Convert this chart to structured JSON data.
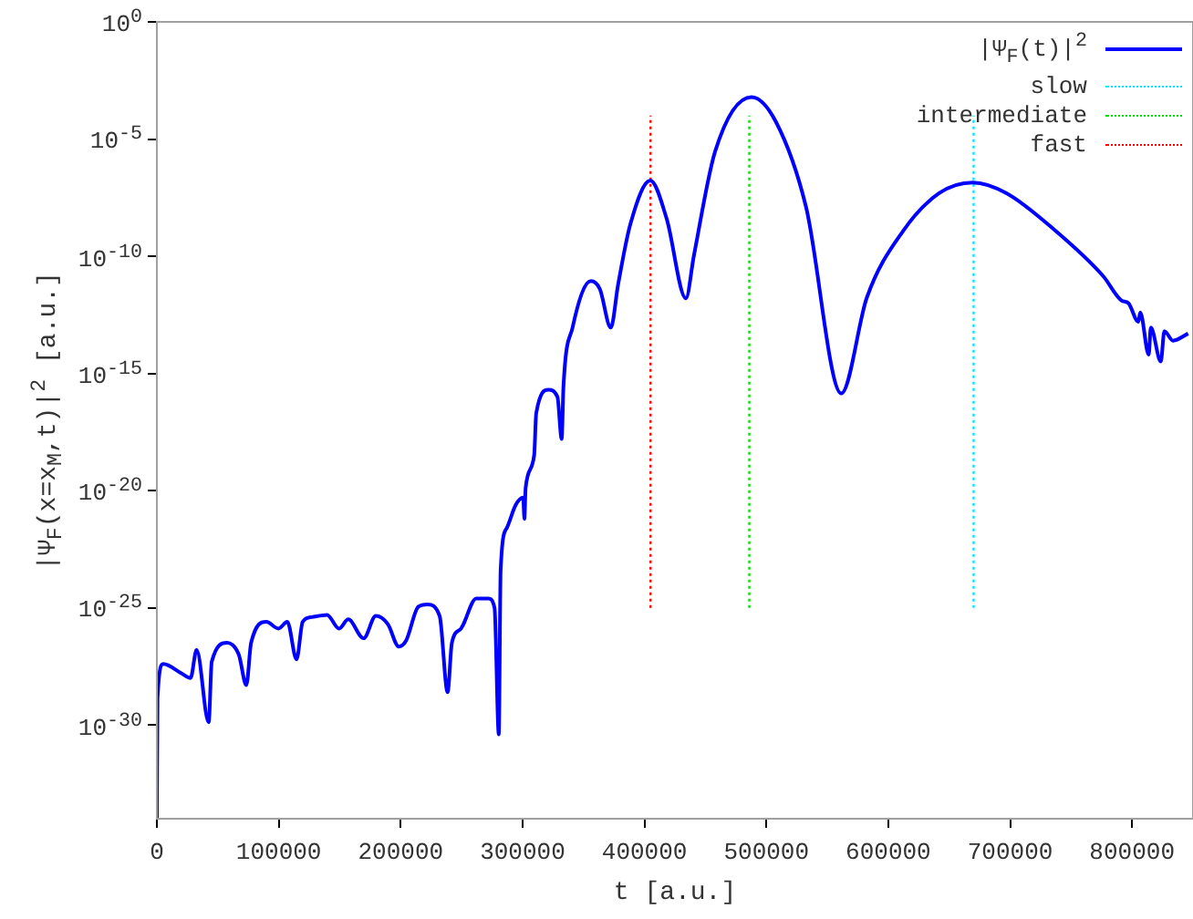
{
  "chart_data": {
    "type": "line",
    "xlabel": "t [a.u.]",
    "ylabel": "|Ψ$_{F}$(x=x$_{M}$,t)|$^{2}$ [a.u.]",
    "log": "y",
    "legend": "top right",
    "xlim": [
      0,
      850000
    ],
    "xticks": [
      0,
      100000,
      200000,
      300000,
      400000,
      500000,
      600000,
      700000,
      800000
    ],
    "ylim": [
      1e-34,
      1
    ],
    "yticks": [
      {
        "value": 1e-30,
        "label": "10$^{-30}$"
      },
      {
        "value": 1e-25,
        "label": "10$^{-25}$"
      },
      {
        "value": 1e-20,
        "label": "10$^{-20}$"
      },
      {
        "value": 1e-15,
        "label": "10$^{-15}$"
      },
      {
        "value": 1e-10,
        "label": "10$^{-10}$"
      },
      {
        "value": 1e-05,
        "label": "10$^{-5}$"
      },
      {
        "value": 1,
        "label": "10$^{0}$"
      }
    ],
    "series": [
      {
        "name": "|Ψ$_{F}$(t)|$^{2}$",
        "color": "#0000ff",
        "line_style": "solid",
        "x": [
          0,
          500,
          5200,
          20100,
          27600,
          32600,
          42500,
          45000,
          57500,
          67200,
          73400,
          77300,
          89800,
          99700,
          107000,
          114600,
          119600,
          127000,
          139600,
          149500,
          157000,
          169600,
          179600,
          189500,
          198500,
          204500,
          214400,
          222000,
          232000,
          238500,
          242000,
          249500,
          262000,
          272000,
          277000,
          280500,
          282000,
          287000,
          294500,
          300500,
          301500,
          302500,
          309500,
          311200,
          321200,
          328600,
          332100,
          333500,
          341000,
          356000,
          363400,
          372400,
          378400,
          388300,
          404800,
          418200,
          434000,
          440600,
          457900,
          487800,
          507700,
          532500,
          561500,
          582400,
          612200,
          642000,
          669400,
          696700,
          736600,
          776400,
          791300,
          797000,
          805200,
          806700,
          813700,
          815400,
          823600,
          826500,
          833600,
          846000
        ],
        "values": [
          1e-34,
          1.4e-29,
          4e-28,
          1.6e-28,
          1e-28,
          1.6e-27,
          1.3e-30,
          5e-28,
          3.2e-27,
          1e-27,
          5e-29,
          3.2e-27,
          2.5e-26,
          1.3e-26,
          2.5e-26,
          6.3e-28,
          2.5e-26,
          4e-26,
          5e-26,
          1.3e-26,
          3.2e-26,
          5e-27,
          4.5e-26,
          2e-26,
          2.2e-27,
          4e-27,
          1.1e-25,
          1.4e-25,
          4.4e-26,
          2.5e-29,
          3.2e-27,
          1.3e-26,
          2.5e-25,
          2.5e-25,
          1e-25,
          4e-31,
          4e-24,
          2.5e-22,
          2.5e-21,
          5e-21,
          6.3e-22,
          1.3e-20,
          3.2e-19,
          2e-17,
          2e-16,
          1e-16,
          1.6e-18,
          2.5e-16,
          9e-14,
          8.7e-12,
          4e-12,
          9e-14,
          6.3e-12,
          2.2e-09,
          1.7e-07,
          4e-09,
          1.6e-12,
          1.1e-10,
          2.9e-06,
          0.00062,
          5.6e-05,
          1.3e-08,
          1.4e-16,
          1.7e-12,
          1.2e-09,
          5e-08,
          1.4e-07,
          5e-08,
          1.3e-09,
          1.4e-11,
          1.3e-12,
          1e-12,
          1.6e-13,
          4e-13,
          6.3e-15,
          9e-14,
          3.2e-15,
          6.3e-14,
          2.5e-14,
          5e-14
        ]
      },
      {
        "name": "slow",
        "color": "#00e8ff",
        "line_style": "dotted",
        "x": [
          670000,
          670000
        ],
        "values": [
          1e-25,
          0.0001
        ]
      },
      {
        "name": "intermediate",
        "color": "#00e000",
        "line_style": "dotted",
        "x": [
          486000,
          486000
        ],
        "values": [
          1e-25,
          0.0001
        ]
      },
      {
        "name": "fast",
        "color": "#ff0000",
        "line_style": "dotted",
        "x": [
          405000,
          405000
        ],
        "values": [
          1e-25,
          0.0001
        ]
      }
    ]
  }
}
